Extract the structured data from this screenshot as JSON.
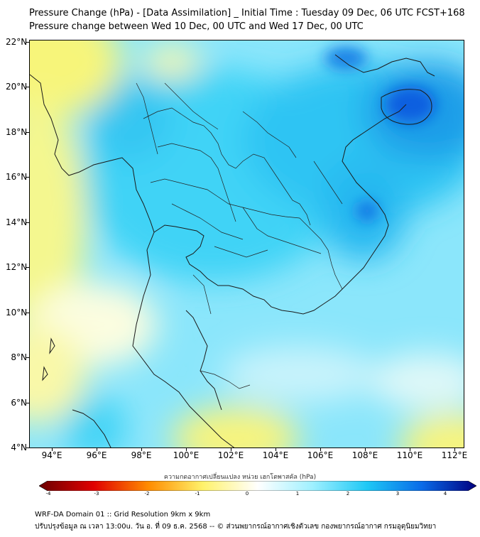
{
  "title_line1": "Pressure Change (hPa) - [Data Assimilation] _ Initial Time : Tuesday 09 Dec, 06 UTC FCST+168",
  "title_line2": "Pressure change between Wed 10 Dec, 00 UTC and Wed 17 Dec, 00 UTC",
  "y_ticks": [
    "22°N",
    "20°N",
    "18°N",
    "16°N",
    "14°N",
    "12°N",
    "10°N",
    "8°N",
    "6°N",
    "4°N"
  ],
  "x_ticks": [
    "94°E",
    "96°E",
    "98°E",
    "100°E",
    "102°E",
    "104°E",
    "106°E",
    "108°E",
    "110°E",
    "112°E"
  ],
  "colorbar": {
    "label": "ความกดอากาศเปลี่ยนแปลง หน่วย เฮกโตพาสคัล (hPa)",
    "ticks": [
      "-4",
      "-3",
      "-2",
      "-1",
      "0",
      "1",
      "2",
      "3",
      "4"
    ],
    "colors": {
      "neg4": "#6b0000",
      "neg3": "#e00000",
      "neg2": "#ff8c00",
      "neg1": "#fff26b",
      "zero": "#ffffff",
      "pos1": "#9ff0ff",
      "pos2": "#1ec8f5",
      "pos3": "#0a6be8",
      "pos4": "#000080"
    }
  },
  "footer_line1": "WRF-DA Domain 01 :: Grid Resolution 9km x 9km",
  "footer_line2": "ปรับปรุงข้อมูล ณ เวลา 13:00u. วัน อ. ที่ 09 ธ.ค. 2568 -- © ส่วนพยากรณ์อากาศเชิงตัวเลข กองพยากรณ์อากาศ กรมอุตุนิยมวิทยา"
}
